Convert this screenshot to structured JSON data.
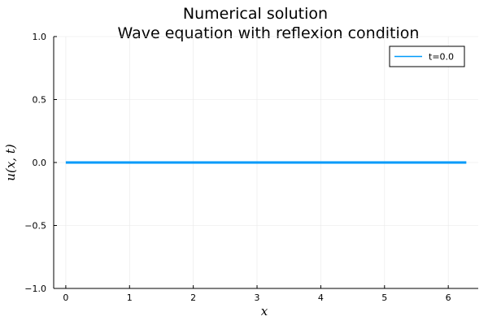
{
  "chart_data": {
    "type": "line",
    "title_line1": "Numerical solution",
    "title_line2": "Wave equation with reflexion condition",
    "xlabel": "x",
    "ylabel": "u(x, t)",
    "xlim": [
      -0.19,
      6.47
    ],
    "ylim": [
      -1.0,
      1.0
    ],
    "xticks": [
      0,
      1,
      2,
      3,
      4,
      5,
      6
    ],
    "xtick_labels": [
      "0",
      "1",
      "2",
      "3",
      "4",
      "5",
      "6"
    ],
    "yticks": [
      -1.0,
      -0.5,
      0.0,
      0.5,
      1.0
    ],
    "ytick_labels": [
      "−1.0",
      "−0.5",
      "0.0",
      "0.5",
      "1.0"
    ],
    "grid": true,
    "legend_position": "top-right",
    "series": [
      {
        "name": "t=0.0",
        "color": "#009AFA",
        "x": [
          0.0,
          6.283
        ],
        "y": [
          0.0,
          0.0
        ]
      }
    ]
  }
}
